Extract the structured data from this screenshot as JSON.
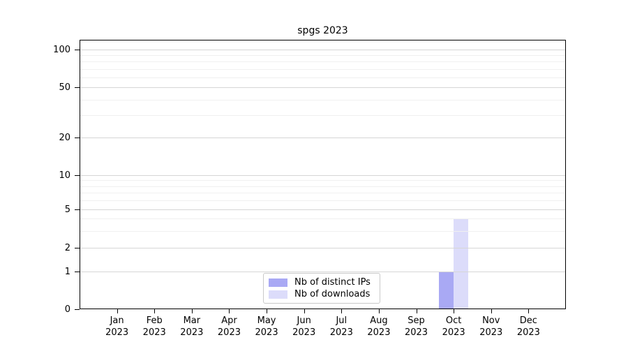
{
  "chart_data": {
    "type": "bar",
    "title": "spgs 2023",
    "categories": [
      "Jan",
      "Feb",
      "Mar",
      "Apr",
      "May",
      "Jun",
      "Jul",
      "Aug",
      "Sep",
      "Oct",
      "Nov",
      "Dec"
    ],
    "x_year_line": "2023",
    "series": [
      {
        "name": "Nb of distinct IPs",
        "color": "#a9a9f4",
        "values": [
          0,
          0,
          0,
          0,
          0,
          0,
          0,
          0,
          0,
          1,
          0,
          0
        ]
      },
      {
        "name": "Nb of downloads",
        "color": "#dcdcfa",
        "values": [
          0,
          0,
          0,
          0,
          0,
          0,
          0,
          0,
          0,
          4,
          0,
          0
        ]
      }
    ],
    "yscale": "symlog",
    "yticks": [
      0,
      1,
      2,
      5,
      10,
      20,
      50,
      100
    ],
    "ylim": [
      0,
      100
    ],
    "xlabel": "",
    "ylabel": "",
    "grid": {
      "horizontal": true,
      "vertical": false
    },
    "legend_position": "inside-bottom-center",
    "colors": {
      "axis": "#000000",
      "major_grid": "#d6d6d6",
      "minor_grid": "#f0f0f0",
      "legend_border": "#c9c9c9",
      "background": "#ffffff"
    }
  }
}
